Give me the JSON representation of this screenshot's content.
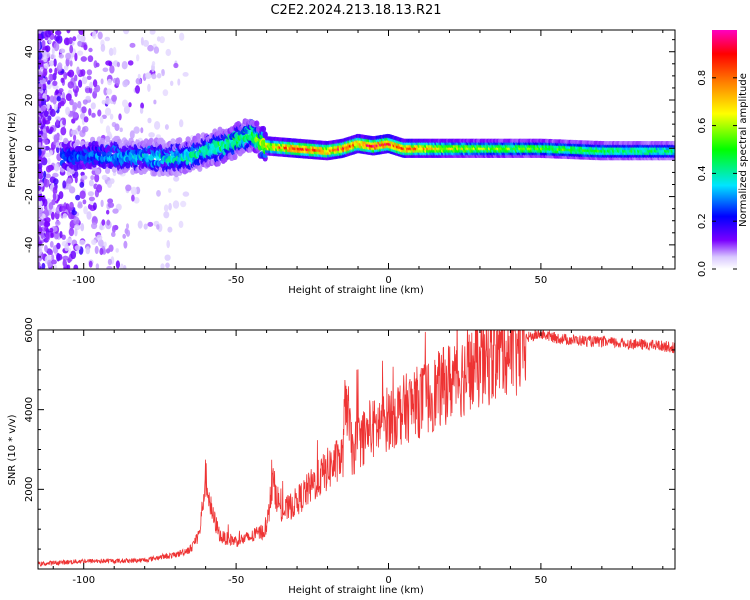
{
  "title": "C2E2.2024.213.18.13.R21",
  "chart_data": [
    {
      "type": "heatmap",
      "xlabel": "Height of straight line (km)",
      "ylabel": "Frequency (Hz)",
      "xlim": [
        -115,
        94
      ],
      "ylim": [
        -50,
        49
      ],
      "x_ticks": [
        -100,
        -50,
        0,
        50
      ],
      "y_ticks": [
        -40,
        -20,
        0,
        20,
        40
      ],
      "colorbar": {
        "label": "Normalized spectral amplitude",
        "range": [
          0.0,
          1.0
        ],
        "ticks": [
          "0.0",
          "0.2",
          "0.4",
          "0.6",
          "0.8"
        ],
        "colors": [
          "#ffffff",
          "#d9c8ff",
          "#7a00ff",
          "#0000ff",
          "#00e5ff",
          "#00ff00",
          "#ffff00",
          "#ff8000",
          "#ff0000",
          "#ff00c0"
        ]
      },
      "ridge": {
        "description_values": [
          {
            "x": -100,
            "y": -3,
            "amp": 0.3
          },
          {
            "x": -85,
            "y": -3,
            "amp": 0.35
          },
          {
            "x": -70,
            "y": -4,
            "amp": 0.4
          },
          {
            "x": -60,
            "y": -1,
            "amp": 0.45
          },
          {
            "x": -50,
            "y": 3,
            "amp": 0.5
          },
          {
            "x": -45,
            "y": 6,
            "amp": 0.5
          },
          {
            "x": -40,
            "y": 1,
            "amp": 0.7
          },
          {
            "x": -30,
            "y": 0,
            "amp": 0.9
          },
          {
            "x": -20,
            "y": -1,
            "amp": 0.8
          },
          {
            "x": -15,
            "y": 0,
            "amp": 0.9
          },
          {
            "x": -10,
            "y": 2,
            "amp": 0.8
          },
          {
            "x": -5,
            "y": 1,
            "amp": 0.95
          },
          {
            "x": 0,
            "y": 2,
            "amp": 0.9
          },
          {
            "x": 5,
            "y": 0,
            "amp": 0.85
          },
          {
            "x": 15,
            "y": 0,
            "amp": 0.7
          },
          {
            "x": 30,
            "y": 0,
            "amp": 0.6
          },
          {
            "x": 50,
            "y": 0,
            "amp": 0.55
          },
          {
            "x": 70,
            "y": -1,
            "amp": 0.5
          },
          {
            "x": 94,
            "y": -1,
            "amp": 0.45
          }
        ]
      }
    },
    {
      "type": "line",
      "xlabel": "Height of straight line (km)",
      "ylabel": "SNR (10 * v/v)",
      "xlim": [
        -115,
        94
      ],
      "ylim": [
        0,
        6000
      ],
      "x_ticks": [
        -100,
        -50,
        0,
        50
      ],
      "y_ticks": [
        2000,
        4000,
        6000
      ],
      "series": [
        {
          "color": "#ee3333",
          "x": [
            -115,
            -110,
            -100,
            -90,
            -80,
            -75,
            -70,
            -65,
            -62,
            -60,
            -58,
            -55,
            -50,
            -45,
            -40,
            -38,
            -35,
            -30,
            -25,
            -20,
            -15,
            -14,
            -12,
            -10,
            -5,
            0,
            5,
            10,
            15,
            20,
            25,
            30,
            35,
            38,
            40,
            42,
            45,
            50,
            55,
            60,
            70,
            80,
            90,
            94
          ],
          "y": [
            120,
            150,
            200,
            200,
            220,
            300,
            350,
            500,
            900,
            2300,
            1400,
            800,
            700,
            800,
            1000,
            2200,
            1400,
            1700,
            2100,
            2500,
            2800,
            4500,
            2900,
            3200,
            3500,
            3800,
            4000,
            4200,
            4400,
            4700,
            4900,
            5100,
            5300,
            5600,
            5500,
            5400,
            5800,
            5900,
            5800,
            5750,
            5700,
            5650,
            5600,
            5550
          ]
        }
      ]
    }
  ]
}
